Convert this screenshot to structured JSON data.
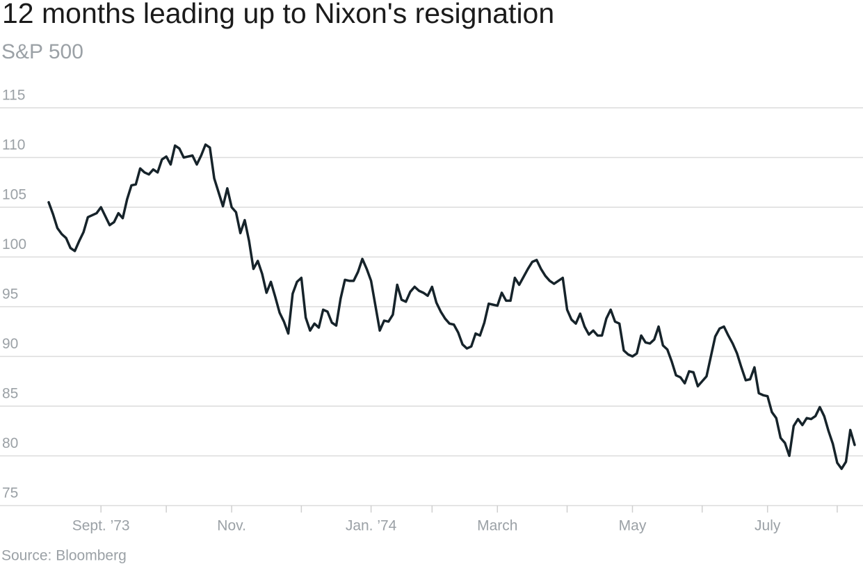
{
  "chart_data": {
    "type": "line",
    "title": "12 months leading up to Nixon's resignation",
    "subtitle": "S&P 500",
    "source": "Source: Bloomberg",
    "color": "#16232a",
    "categories": [
      null,
      null,
      null,
      null,
      null,
      null,
      null,
      null,
      null,
      null,
      null,
      null,
      "Sept. ’73",
      null,
      null,
      null,
      null,
      null,
      null,
      null,
      null,
      null,
      null,
      null,
      null,
      null,
      null,
      null,
      null,
      null,
      null,
      null,
      null,
      null,
      null,
      null,
      null,
      null,
      null,
      null,
      null,
      null,
      "Nov.",
      null,
      null,
      null,
      null,
      null,
      null,
      null,
      null,
      null,
      null,
      null,
      null,
      null,
      null,
      null,
      null,
      null,
      null,
      null,
      null,
      null,
      null,
      null,
      null,
      null,
      null,
      null,
      null,
      null,
      null,
      null,
      "Jan. ’74",
      null,
      null,
      null,
      null,
      null,
      null,
      null,
      null,
      null,
      null,
      null,
      null,
      null,
      null,
      null,
      null,
      null,
      null,
      null,
      null,
      null,
      null,
      null,
      null,
      null,
      null,
      null,
      null,
      "March",
      null,
      null,
      null,
      null,
      null,
      null,
      null,
      null,
      null,
      null,
      null,
      null,
      null,
      null,
      null,
      null,
      null,
      null,
      null,
      null,
      null,
      null,
      null,
      null,
      null,
      null,
      null,
      null,
      null,
      null,
      "May",
      null,
      null,
      null,
      null,
      null,
      null,
      null,
      null,
      null,
      null,
      null,
      null,
      null,
      null,
      null,
      null,
      null,
      null,
      null,
      null,
      null,
      null,
      null,
      null,
      null,
      null,
      null,
      null,
      null,
      null,
      "July",
      null,
      null,
      null,
      null,
      null,
      null,
      null,
      null,
      null,
      null,
      null,
      null,
      null,
      null,
      null,
      null,
      null,
      null,
      null,
      null
    ],
    "values": [
      105.5,
      104.3,
      102.9,
      102.3,
      101.9,
      100.9,
      100.6,
      101.6,
      102.5,
      104.0,
      104.2,
      104.4,
      105.0,
      104.1,
      103.2,
      103.5,
      104.4,
      103.9,
      105.8,
      107.2,
      107.3,
      108.9,
      108.5,
      108.3,
      108.8,
      108.5,
      109.8,
      110.1,
      109.3,
      111.2,
      110.9,
      110.0,
      110.1,
      110.2,
      109.3,
      110.2,
      111.3,
      111.0,
      107.9,
      106.5,
      105.1,
      106.9,
      105.0,
      104.5,
      102.4,
      103.7,
      101.6,
      98.8,
      99.6,
      98.3,
      96.4,
      97.5,
      96.0,
      94.4,
      93.5,
      92.3,
      96.3,
      97.5,
      97.9,
      93.9,
      92.6,
      93.3,
      92.9,
      94.7,
      94.5,
      93.4,
      93.1,
      95.8,
      97.7,
      97.6,
      97.6,
      98.5,
      99.8,
      98.8,
      97.6,
      95.1,
      92.6,
      93.6,
      93.5,
      94.2,
      97.2,
      95.7,
      95.5,
      96.5,
      97.0,
      96.6,
      96.4,
      96.1,
      97.0,
      95.4,
      94.5,
      93.8,
      93.3,
      93.2,
      92.4,
      91.2,
      90.8,
      91.0,
      92.3,
      92.1,
      93.4,
      95.3,
      95.2,
      95.1,
      96.4,
      95.6,
      95.6,
      97.9,
      97.2,
      98.0,
      98.8,
      99.5,
      99.7,
      98.8,
      98.1,
      97.6,
      97.3,
      97.6,
      97.9,
      94.7,
      93.7,
      93.3,
      94.3,
      93.0,
      92.2,
      92.6,
      92.1,
      92.1,
      93.8,
      94.7,
      93.5,
      93.3,
      90.6,
      90.2,
      90.0,
      90.3,
      92.1,
      91.4,
      91.3,
      91.7,
      93.0,
      91.1,
      90.7,
      89.5,
      88.1,
      87.9,
      87.3,
      88.5,
      88.4,
      87.0,
      87.5,
      88.0,
      90.0,
      92.0,
      92.8,
      93.0,
      92.1,
      91.3,
      90.3,
      88.9,
      87.6,
      87.7,
      88.9,
      86.3,
      86.1,
      86.0,
      84.4,
      83.8,
      81.8,
      81.3,
      80.0,
      83.0,
      83.7,
      83.1,
      83.8,
      83.7,
      84.0,
      84.9,
      84.0,
      82.5,
      81.2,
      79.3,
      78.7,
      79.4,
      82.6,
      81.1
    ],
    "ylim": [
      75,
      115
    ],
    "yticks": [
      75,
      80,
      85,
      90,
      95,
      100,
      105,
      110,
      115
    ],
    "grid": true
  }
}
